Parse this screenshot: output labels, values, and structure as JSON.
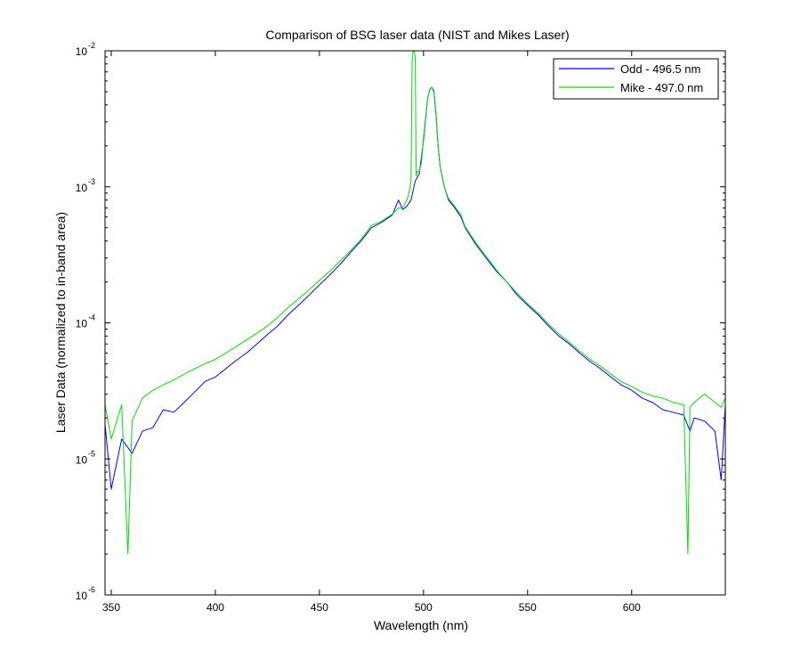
{
  "chart_data": {
    "type": "line",
    "title": "Comparison of BSG laser data (NIST and Mikes Laser)",
    "xlabel": "Wavelength (nm)",
    "ylabel": "Laser Data (normalized to in-band area)",
    "xlim": [
      347,
      645
    ],
    "ylim": [
      1e-06,
      0.01
    ],
    "y_scale": "log",
    "grid": false,
    "legend_position": "top-right",
    "x_ticks": [
      {
        "value": 350,
        "label": "350"
      },
      {
        "value": 400,
        "label": "400"
      },
      {
        "value": 450,
        "label": "450"
      },
      {
        "value": 500,
        "label": "500"
      },
      {
        "value": 550,
        "label": "550"
      },
      {
        "value": 600,
        "label": "600"
      }
    ],
    "y_ticks": [
      {
        "value": 1e-06,
        "base": "10",
        "exp": "-6"
      },
      {
        "value": 1e-05,
        "base": "10",
        "exp": "-5"
      },
      {
        "value": 0.0001,
        "base": "10",
        "exp": "-4"
      },
      {
        "value": 0.001,
        "base": "10",
        "exp": "-3"
      },
      {
        "value": 0.01,
        "base": "10",
        "exp": "-2"
      }
    ],
    "series": [
      {
        "name": "Odd - 496.5 nm",
        "color": "#0000ff",
        "x": [
          347,
          350,
          355,
          360,
          365,
          370,
          375,
          380,
          385,
          390,
          395,
          400,
          405,
          410,
          415,
          420,
          425,
          430,
          435,
          440,
          445,
          450,
          455,
          460,
          465,
          470,
          475,
          480,
          485,
          488,
          490,
          492,
          494,
          496,
          498,
          500,
          502,
          503,
          504,
          505,
          506,
          507,
          508,
          510,
          512,
          515,
          518,
          520,
          525,
          530,
          535,
          540,
          545,
          550,
          555,
          560,
          565,
          570,
          575,
          580,
          585,
          590,
          595,
          600,
          605,
          610,
          615,
          620,
          625,
          628,
          630,
          635,
          640,
          643,
          645
        ],
        "y": [
          1.8e-05,
          6e-06,
          1.4e-05,
          1.1e-05,
          1.6e-05,
          1.7e-05,
          2.3e-05,
          2.2e-05,
          2.6e-05,
          3.1e-05,
          3.7e-05,
          4e-05,
          4.6e-05,
          5.3e-05,
          6e-05,
          7e-05,
          8.2e-05,
          9.5e-05,
          0.000115,
          0.000135,
          0.00016,
          0.00019,
          0.000225,
          0.00027,
          0.00033,
          0.0004,
          0.0005,
          0.00055,
          0.00062,
          0.0008,
          0.00068,
          0.00072,
          0.0008,
          0.0011,
          0.00125,
          0.0022,
          0.0045,
          0.0052,
          0.0054,
          0.005,
          0.0034,
          0.002,
          0.0014,
          0.001,
          0.0008,
          0.0007,
          0.0006,
          0.0005,
          0.00038,
          0.0003,
          0.00024,
          0.0002,
          0.00016,
          0.000135,
          0.000115,
          9.5e-05,
          8e-05,
          7e-05,
          6e-05,
          5.2e-05,
          4.6e-05,
          4e-05,
          3.5e-05,
          3.2e-05,
          2.8e-05,
          2.6e-05,
          2.3e-05,
          2.2e-05,
          2.1e-05,
          1.6e-05,
          2e-05,
          1.9e-05,
          1.6e-05,
          7e-06,
          2.5e-05
        ]
      },
      {
        "name": "Mike - 497.0 nm",
        "color": "#00dd00",
        "x": [
          347,
          350,
          355,
          358,
          360,
          365,
          370,
          375,
          380,
          385,
          390,
          395,
          400,
          405,
          410,
          415,
          420,
          425,
          430,
          435,
          440,
          445,
          450,
          455,
          460,
          465,
          470,
          475,
          480,
          485,
          488,
          490,
          492,
          493,
          494,
          494.5,
          495,
          495.5,
          496,
          496.5,
          497,
          498,
          499,
          500,
          502,
          503,
          504,
          505,
          506,
          507,
          508,
          510,
          512,
          515,
          518,
          520,
          525,
          530,
          535,
          540,
          545,
          550,
          555,
          560,
          565,
          570,
          575,
          580,
          585,
          590,
          595,
          600,
          605,
          610,
          615,
          620,
          625,
          627,
          628,
          630,
          635,
          640,
          643,
          645
        ],
        "y": [
          2.5e-05,
          1.4e-05,
          2.5e-05,
          2e-06,
          1.9e-05,
          2.8e-05,
          3.2e-05,
          3.5e-05,
          3.8e-05,
          4.2e-05,
          4.6e-05,
          5e-05,
          5.4e-05,
          6e-05,
          6.7e-05,
          7.5e-05,
          8.4e-05,
          9.5e-05,
          0.00011,
          0.00013,
          0.00015,
          0.000175,
          0.000205,
          0.00024,
          0.000285,
          0.00034,
          0.00041,
          0.00052,
          0.00056,
          0.00063,
          0.0007,
          0.0007,
          0.0008,
          0.0009,
          0.0011,
          0.008,
          0.01,
          0.01,
          0.009,
          0.0012,
          0.0013,
          0.0013,
          0.0015,
          0.0023,
          0.0045,
          0.0052,
          0.0054,
          0.0051,
          0.0035,
          0.002,
          0.0014,
          0.001,
          0.00082,
          0.00072,
          0.00062,
          0.00051,
          0.00039,
          0.00031,
          0.000245,
          0.0002,
          0.000165,
          0.000138,
          0.000118,
          9.8e-05,
          8.3e-05,
          7.2e-05,
          6.2e-05,
          5.4e-05,
          4.8e-05,
          4.2e-05,
          3.7e-05,
          3.4e-05,
          3.1e-05,
          2.9e-05,
          2.8e-05,
          2.6e-05,
          2.5e-05,
          2e-06,
          2.4e-05,
          2.6e-05,
          3e-05,
          2.6e-05,
          2.4e-05,
          2.8e-05
        ]
      }
    ]
  }
}
